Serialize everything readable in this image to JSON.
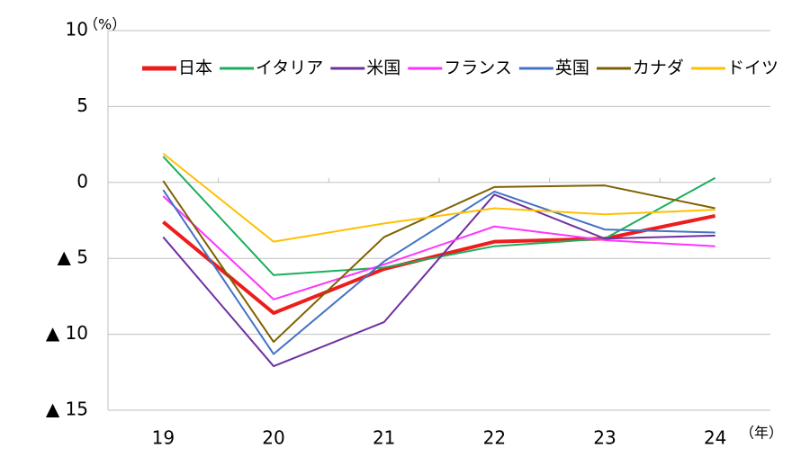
{
  "chart_data": {
    "type": "line",
    "y_unit": "（%）",
    "x_unit": "（年）",
    "categories": [
      "19",
      "20",
      "21",
      "22",
      "23",
      "24"
    ],
    "series": [
      {
        "name": "日本",
        "color": "#ee1c1c",
        "width": 4,
        "values": [
          -2.6,
          -8.6,
          -5.7,
          -3.9,
          -3.7,
          -2.2
        ]
      },
      {
        "name": "イタリア",
        "color": "#1aaf5d",
        "width": 2,
        "values": [
          1.7,
          -6.1,
          -5.6,
          -4.2,
          -3.7,
          0.3
        ]
      },
      {
        "name": "米国",
        "color": "#7030a0",
        "width": 2,
        "values": [
          -3.6,
          -12.1,
          -9.2,
          -0.8,
          -3.7,
          -3.5
        ]
      },
      {
        "name": "フランス",
        "color": "#ff33ff",
        "width": 2,
        "values": [
          -0.9,
          -7.7,
          -5.4,
          -2.9,
          -3.8,
          -4.2
        ]
      },
      {
        "name": "英国",
        "color": "#4472c4",
        "width": 2,
        "values": [
          -0.5,
          -11.3,
          -5.2,
          -0.6,
          -3.1,
          -3.3
        ]
      },
      {
        "name": "カナダ",
        "color": "#7f6000",
        "width": 2,
        "values": [
          0.1,
          -10.5,
          -3.6,
          -0.3,
          -0.2,
          -1.7
        ]
      },
      {
        "name": "ドイツ",
        "color": "#ffc000",
        "width": 2,
        "values": [
          1.9,
          -3.9,
          -2.7,
          -1.7,
          -2.1,
          -1.8
        ]
      }
    ],
    "ylim": [
      -15,
      10
    ],
    "yticks": [
      10,
      5,
      0,
      {
        "value": -5,
        "label": "▲ 5"
      },
      {
        "value": -10,
        "label": "▲ 10"
      },
      {
        "value": -15,
        "label": "▲ 15"
      }
    ],
    "grid": true,
    "legend": "top"
  }
}
